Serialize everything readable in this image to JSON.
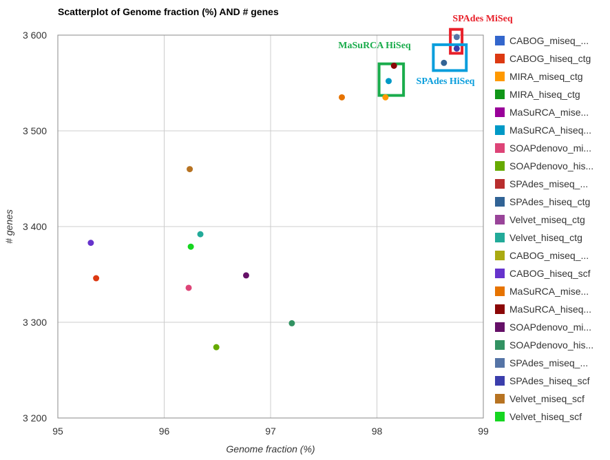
{
  "chart_data": {
    "type": "scatter",
    "title": "Scatterplot of Genome fraction (%) AND # genes",
    "xlabel": "Genome fraction (%)",
    "ylabel": "# genes",
    "xlim": [
      95,
      99
    ],
    "ylim": [
      3200,
      3600
    ],
    "x_ticks": [
      "95",
      "96",
      "97",
      "98",
      "99"
    ],
    "y_ticks": [
      "3 600",
      "3 500",
      "3 400",
      "3 300",
      "3 200"
    ],
    "grid": true,
    "legend_position": "right",
    "series": [
      {
        "name": "CABOG_miseq_...",
        "color": "#3366cc",
        "points": []
      },
      {
        "name": "CABOG_hiseq_ctg",
        "color": "#dc3912",
        "points": [
          [
            95.36,
            3346
          ]
        ]
      },
      {
        "name": "MIRA_miseq_ctg",
        "color": "#ff9900",
        "points": [
          [
            98.08,
            3535
          ]
        ]
      },
      {
        "name": "MIRA_hiseq_ctg",
        "color": "#109618",
        "points": []
      },
      {
        "name": "MaSuRCA_mise...",
        "color": "#990099",
        "points": []
      },
      {
        "name": "MaSuRCA_hiseq...",
        "color": "#0099c6",
        "points": [
          [
            98.11,
            3552
          ]
        ]
      },
      {
        "name": "SOAPdenovo_mi...",
        "color": "#dd4477",
        "points": [
          [
            96.23,
            3336
          ]
        ]
      },
      {
        "name": "SOAPdenovo_his...",
        "color": "#66aa00",
        "points": [
          [
            96.49,
            3274
          ]
        ]
      },
      {
        "name": "SPAdes_miseq_...",
        "color": "#b82e2e",
        "points": []
      },
      {
        "name": "SPAdes_hiseq_ctg",
        "color": "#316395",
        "points": [
          [
            98.63,
            3571
          ]
        ]
      },
      {
        "name": "Velvet_miseq_ctg",
        "color": "#994499",
        "points": []
      },
      {
        "name": "Velvet_hiseq_ctg",
        "color": "#22aa99",
        "points": [
          [
            96.34,
            3392
          ]
        ]
      },
      {
        "name": "CABOG_miseq_...",
        "color": "#aaaa11",
        "points": []
      },
      {
        "name": "CABOG_hiseq_scf",
        "color": "#6633cc",
        "points": [
          [
            95.31,
            3383
          ]
        ]
      },
      {
        "name": "MaSuRCA_mise...",
        "color": "#e67300",
        "points": [
          [
            97.67,
            3535
          ]
        ]
      },
      {
        "name": "MaSuRCA_hiseq...",
        "color": "#8b0707",
        "points": [
          [
            98.16,
            3568
          ]
        ]
      },
      {
        "name": "SOAPdenovo_mi...",
        "color": "#651067",
        "points": [
          [
            96.77,
            3349
          ]
        ]
      },
      {
        "name": "SOAPdenovo_his...",
        "color": "#329262",
        "points": [
          [
            97.2,
            3299
          ]
        ]
      },
      {
        "name": "SPAdes_miseq_...",
        "color": "#5574a6",
        "points": [
          [
            98.75,
            3598
          ]
        ]
      },
      {
        "name": "SPAdes_hiseq_scf",
        "color": "#3b3eac",
        "points": [
          [
            98.75,
            3586
          ]
        ]
      },
      {
        "name": "Velvet_miseq_scf",
        "color": "#b77322",
        "points": [
          [
            96.24,
            3460
          ]
        ]
      },
      {
        "name": "Velvet_hiseq_scf",
        "color": "#16d620",
        "points": [
          [
            96.25,
            3379
          ]
        ]
      }
    ],
    "annotations": [
      {
        "text": "SPAdes MiSeq",
        "color": "#e8202a",
        "box": {
          "x": [
            98.69,
            98.8
          ],
          "y": [
            3581,
            3606
          ]
        }
      },
      {
        "text": "MaSuRCA HiSeq",
        "color": "#1aac4c",
        "box": {
          "x": [
            98.02,
            98.25
          ],
          "y": [
            3537,
            3570
          ]
        }
      },
      {
        "text": "SPAdes HiSeq",
        "color": "#0a9edc",
        "box": {
          "x": [
            98.53,
            98.84
          ],
          "y": [
            3563,
            3590
          ]
        }
      }
    ]
  }
}
